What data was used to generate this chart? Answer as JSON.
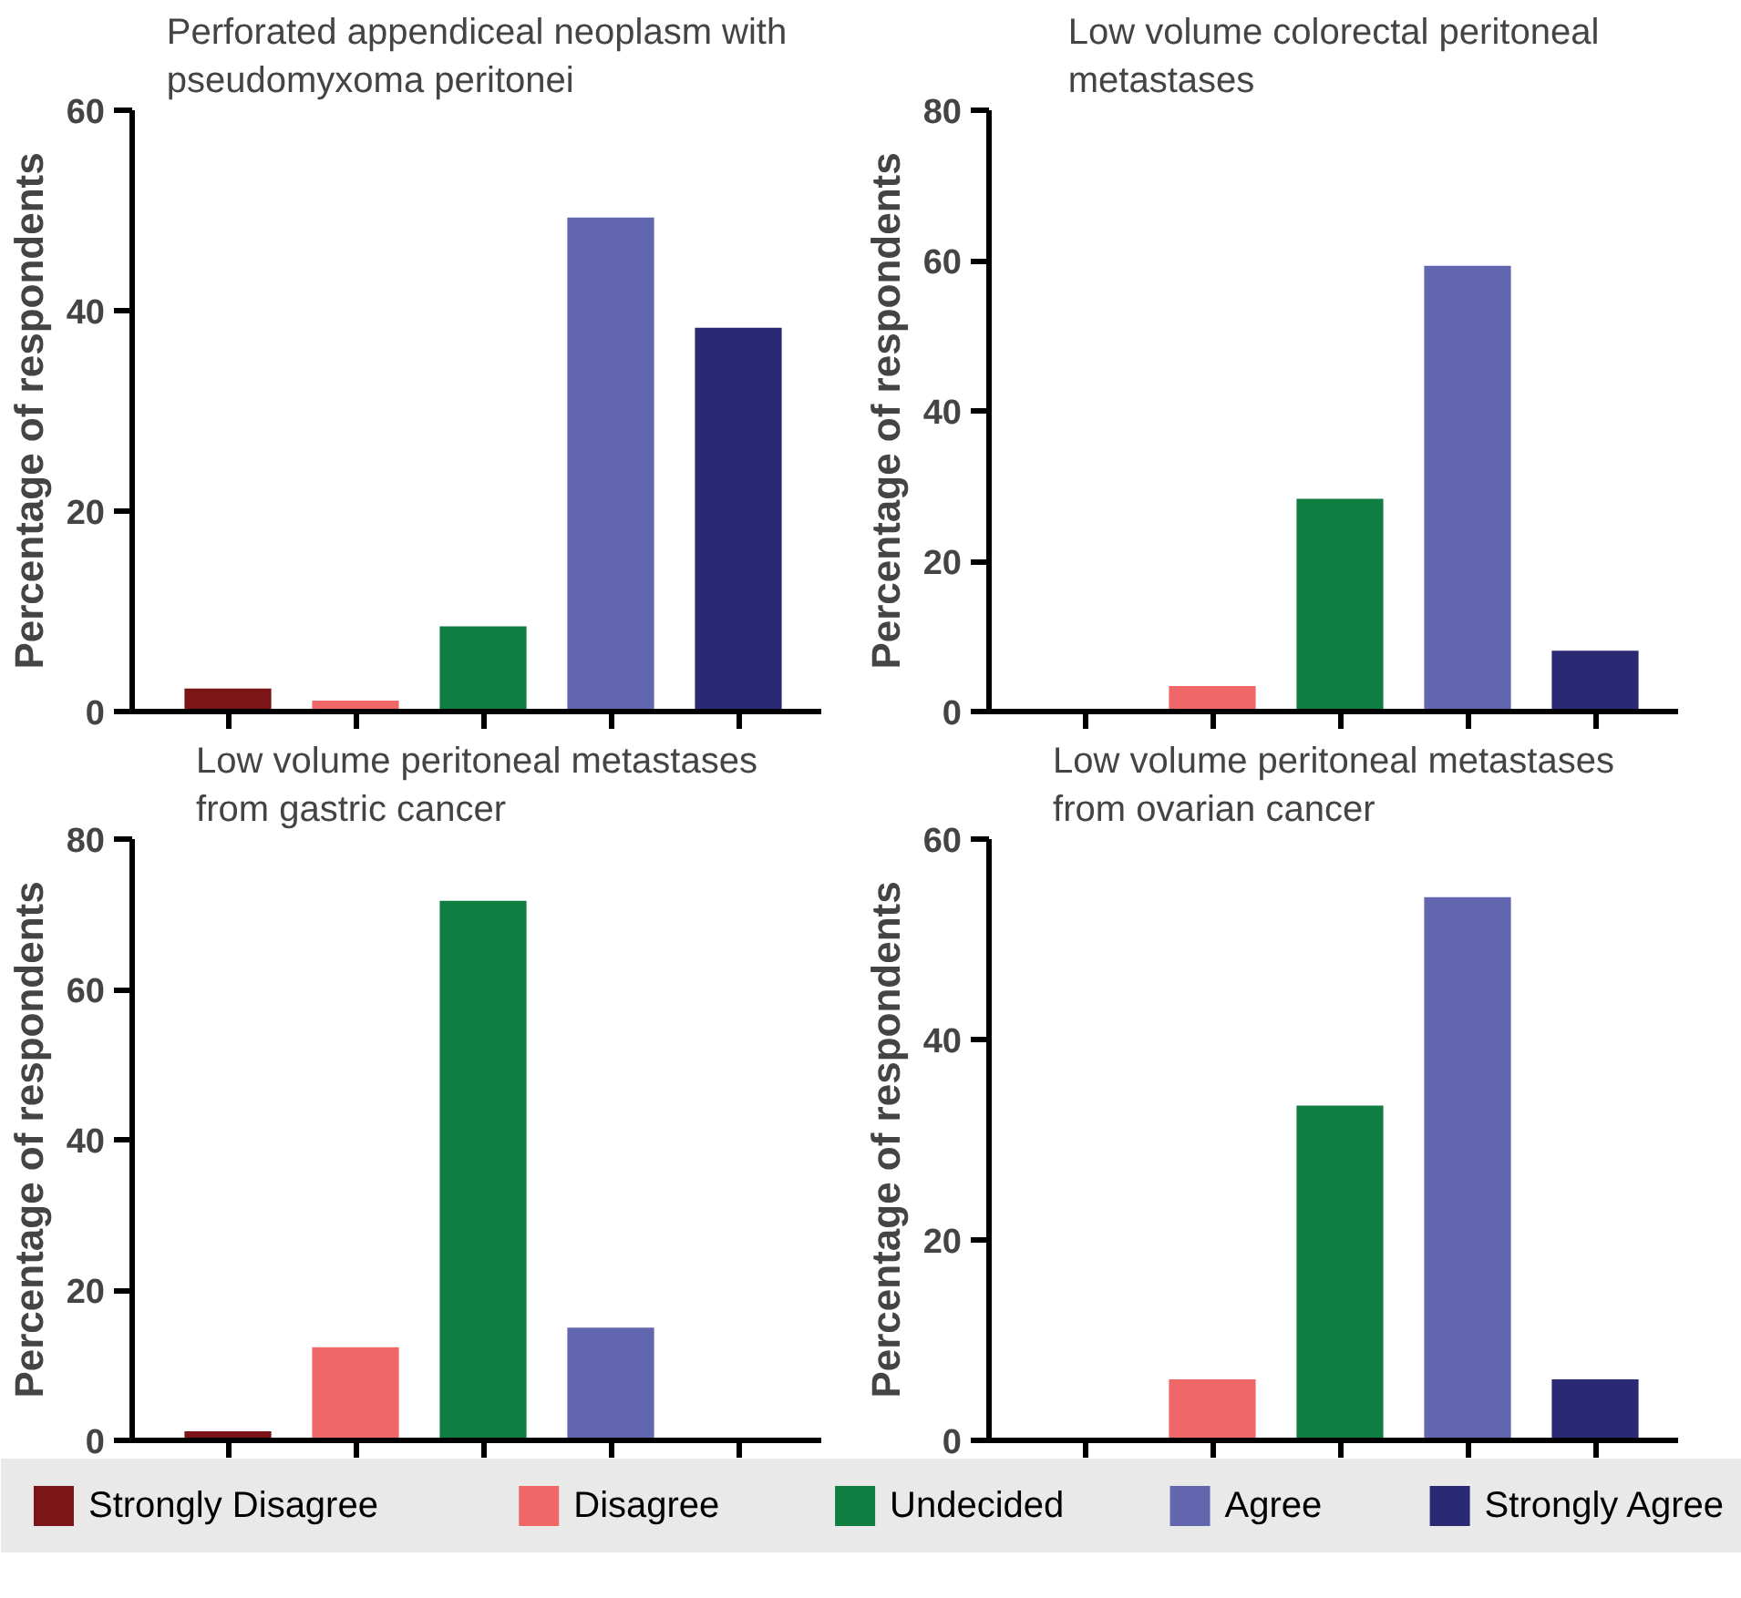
{
  "chart_data": [
    {
      "type": "bar",
      "title": "Perforated appendiceal neoplasm with pseudomyxoma peritonei",
      "ylabel": "Percentage of respondents",
      "categories": [
        null,
        null,
        null,
        null,
        null
      ],
      "ylim": [
        0,
        60
      ],
      "yticks": [
        0,
        20,
        40,
        60
      ],
      "grid": false,
      "series": [
        {
          "color": "#7b1518",
          "values": [
            2.3,
            null,
            null,
            null,
            null
          ]
        },
        {
          "color": "#f06767",
          "values": [
            null,
            1.1,
            null,
            null,
            null
          ]
        },
        {
          "color": "#107e41",
          "values": [
            null,
            null,
            8.5,
            null,
            null
          ]
        },
        {
          "color": "#6266ae",
          "values": [
            null,
            null,
            null,
            49.3,
            null
          ]
        },
        {
          "color": "#292a73",
          "values": [
            null,
            null,
            null,
            null,
            38.3
          ]
        }
      ]
    },
    {
      "type": "bar",
      "title": "Low volume colorectal peritoneal metastases",
      "ylabel": "Percentage of respondents",
      "categories": [
        null,
        null,
        null,
        null,
        null
      ],
      "ylim": [
        0,
        80
      ],
      "yticks": [
        0,
        20,
        40,
        60,
        80
      ],
      "grid": false,
      "series": [
        {
          "color": "#7b1518",
          "values": [
            null,
            null,
            null,
            null,
            null
          ]
        },
        {
          "color": "#f06767",
          "values": [
            null,
            3.4,
            null,
            null,
            null
          ]
        },
        {
          "color": "#107e41",
          "values": [
            null,
            null,
            28.3,
            null,
            null
          ]
        },
        {
          "color": "#6266ae",
          "values": [
            null,
            null,
            null,
            59.3,
            null
          ]
        },
        {
          "color": "#292a73",
          "values": [
            null,
            null,
            null,
            null,
            8.1
          ]
        }
      ]
    },
    {
      "type": "bar",
      "title": "Low volume peritoneal metastases from gastric cancer",
      "ylabel": "Percentage of respondents",
      "categories": [
        null,
        null,
        null,
        null,
        null
      ],
      "ylim": [
        0,
        80
      ],
      "yticks": [
        0,
        20,
        40,
        60,
        80
      ],
      "grid": false,
      "series": [
        {
          "color": "#7b1518",
          "values": [
            1.2,
            null,
            null,
            null,
            null
          ]
        },
        {
          "color": "#f06767",
          "values": [
            null,
            12.4,
            null,
            null,
            null
          ]
        },
        {
          "color": "#107e41",
          "values": [
            null,
            null,
            71.8,
            null,
            null
          ]
        },
        {
          "color": "#6266ae",
          "values": [
            null,
            null,
            null,
            15.0,
            null
          ]
        },
        {
          "color": "#292a73",
          "values": [
            null,
            null,
            null,
            null,
            null
          ]
        }
      ]
    },
    {
      "type": "bar",
      "title": "Low volume peritoneal metastases from ovarian cancer",
      "ylabel": "Percentage of respondents",
      "categories": [
        null,
        null,
        null,
        null,
        null
      ],
      "ylim": [
        0,
        60
      ],
      "yticks": [
        0,
        20,
        40,
        60
      ],
      "grid": false,
      "legend": "bottom",
      "series": [
        {
          "name": "Strongly Disagree",
          "color": "#7b1518",
          "values": [
            null,
            null,
            null,
            null,
            null
          ]
        },
        {
          "name": "Disagree",
          "color": "#f06767",
          "values": [
            null,
            6.1,
            null,
            null,
            null
          ]
        },
        {
          "name": "Undecided",
          "color": "#107e41",
          "values": [
            null,
            null,
            33.4,
            null,
            null
          ]
        },
        {
          "name": "Agree",
          "color": "#6266ae",
          "values": [
            null,
            null,
            null,
            54.2,
            null
          ]
        },
        {
          "name": "Strongly Agree",
          "color": "#292a73",
          "values": [
            null,
            null,
            null,
            null,
            6.1
          ]
        }
      ]
    }
  ]
}
